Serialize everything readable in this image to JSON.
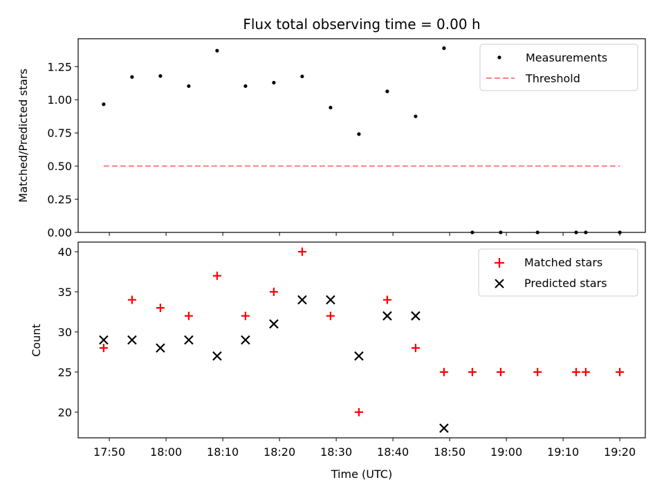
{
  "chart_data": [
    {
      "type": "scatter",
      "title": "Flux total observing time = 0.00 h",
      "xlabel": "",
      "ylabel": "Matched/Predicted stars",
      "ylim": [
        0,
        1.46
      ],
      "yticks": [
        "0.00",
        "0.25",
        "0.50",
        "0.75",
        "1.00",
        "1.25"
      ],
      "ytick_values": [
        0,
        0.25,
        0.5,
        0.75,
        1.0,
        1.25
      ],
      "legend_position": "upper-right",
      "series": [
        {
          "name": "Measurements",
          "marker": "dot",
          "color": "#000000",
          "x": [
            0,
            5,
            10,
            15,
            20,
            25,
            30,
            35,
            40,
            45,
            50,
            55,
            60,
            65,
            70,
            76.5,
            83.3,
            85,
            91
          ],
          "y": [
            0.966,
            1.172,
            1.179,
            1.103,
            1.37,
            1.103,
            1.129,
            1.176,
            0.941,
            0.741,
            1.063,
            0.875,
            1.389,
            0,
            0,
            0,
            0,
            0,
            0
          ]
        },
        {
          "name": "Threshold",
          "style": "dashed-line",
          "color": "#ff7f7f",
          "x": [
            0,
            91
          ],
          "y": [
            0.5,
            0.5
          ]
        }
      ]
    },
    {
      "type": "scatter",
      "title": "",
      "xlabel": "Time (UTC)",
      "ylabel": "Count",
      "ylim": [
        16.8,
        41.2
      ],
      "yticks": [
        "20",
        "25",
        "30",
        "35",
        "40"
      ],
      "ytick_values": [
        20,
        25,
        30,
        35,
        40
      ],
      "xlim": [
        -4.5,
        95.5
      ],
      "xtick_labels": [
        "17:50",
        "18:00",
        "18:10",
        "18:20",
        "18:30",
        "18:40",
        "18:50",
        "19:00",
        "19:10",
        "19:20"
      ],
      "xtick_values": [
        1,
        11,
        21,
        31,
        41,
        51,
        61,
        71,
        81,
        91
      ],
      "legend_position": "upper-right",
      "series": [
        {
          "name": "Matched stars",
          "marker": "plus",
          "color": "#ff0000",
          "x": [
            0,
            5,
            10,
            15,
            20,
            25,
            30,
            35,
            40,
            45,
            50,
            55,
            60,
            65,
            70,
            76.5,
            83.3,
            85,
            91
          ],
          "y": [
            28,
            34,
            33,
            32,
            37,
            32,
            35,
            40,
            32,
            20,
            34,
            28,
            25,
            25,
            25,
            25,
            25,
            25,
            25
          ]
        },
        {
          "name": "Predicted stars",
          "marker": "x",
          "color": "#000000",
          "x": [
            0,
            5,
            10,
            15,
            20,
            25,
            30,
            35,
            40,
            45,
            50,
            55,
            60
          ],
          "y": [
            29,
            29,
            28,
            29,
            27,
            29,
            31,
            34,
            34,
            27,
            32,
            32,
            18
          ]
        }
      ]
    }
  ]
}
